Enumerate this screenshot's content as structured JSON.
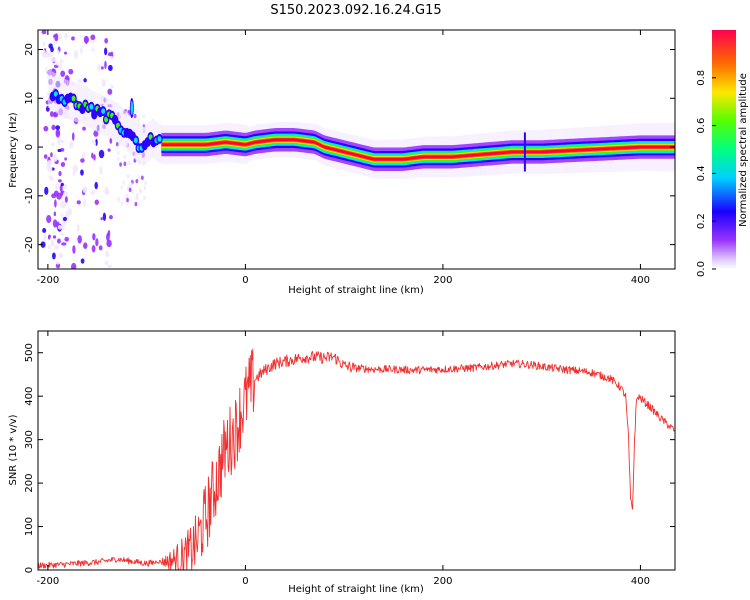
{
  "figure_title": "S150.2023.092.16.24.G15",
  "colorbar": {
    "label": "Normalized spectral amplitude",
    "ticks": [
      "0.0",
      "0.2",
      "0.4",
      "0.6",
      "0.8"
    ]
  },
  "chart_data": [
    {
      "type": "heatmap",
      "title": "",
      "xlabel": "Height of straight line (km)",
      "ylabel": "Frequency (Hz)",
      "xlim": [
        -210,
        435
      ],
      "ylim": [
        -25,
        24
      ],
      "xticks": [
        "-200",
        "0",
        "200",
        "400"
      ],
      "yticks": [
        "-20",
        "-10",
        "0",
        "10",
        "20"
      ],
      "colorscale": [
        "#f2e8ff",
        "#9933ff",
        "#2a00ff",
        "#00e5ff",
        "#33ff00",
        "#ffe000",
        "#ff5a00",
        "#ff0040"
      ],
      "ridge": {
        "x": [
          -200,
          -185,
          -170,
          -160,
          -150,
          -140,
          -130,
          -120,
          -115,
          -110,
          -105,
          -100,
          -95,
          -90,
          -85,
          -80,
          -70,
          -40,
          -20,
          0,
          10,
          30,
          50,
          70,
          80,
          90,
          100,
          110,
          130,
          160,
          180,
          210,
          240,
          270,
          300,
          350,
          400,
          435
        ],
        "y": [
          12,
          10,
          9,
          8,
          7,
          6,
          5,
          3,
          2,
          1,
          0,
          1,
          2,
          1,
          0.5,
          0.5,
          0.5,
          0.5,
          1,
          0.5,
          1,
          1.5,
          1.5,
          1,
          0,
          -0.5,
          -1,
          -1.5,
          -2.5,
          -2.5,
          -2,
          -2,
          -1.5,
          -1,
          -1,
          -0.5,
          0,
          0
        ]
      }
    },
    {
      "type": "line",
      "title": "",
      "xlabel": "Height of straight line (km)",
      "ylabel": "SNR (10 * v/v)",
      "xlim": [
        -210,
        435
      ],
      "ylim": [
        0,
        550
      ],
      "xticks": [
        "-200",
        "0",
        "200",
        "400"
      ],
      "yticks": [
        "0",
        "100",
        "200",
        "300",
        "400",
        "500"
      ],
      "color": "#f23030",
      "series": [
        {
          "x": [
            -210,
            -190,
            -170,
            -150,
            -130,
            -115,
            -100,
            -90,
            -80,
            -70,
            -60,
            -55,
            -50,
            -45,
            -40,
            -35,
            -30,
            -25,
            -20,
            -15,
            -10,
            -5,
            0,
            5,
            10,
            20,
            30,
            40,
            50,
            60,
            70,
            80,
            90,
            95,
            100,
            110,
            130,
            150,
            170,
            200,
            230,
            250,
            270,
            290,
            310,
            330,
            350,
            370,
            380,
            385,
            388,
            390,
            392,
            394,
            396,
            398,
            400,
            410,
            420,
            430,
            435
          ],
          "y": [
            10,
            12,
            15,
            18,
            25,
            20,
            15,
            18,
            20,
            25,
            35,
            45,
            60,
            90,
            120,
            160,
            200,
            240,
            280,
            300,
            320,
            360,
            390,
            420,
            440,
            460,
            475,
            480,
            485,
            490,
            490,
            488,
            490,
            480,
            470,
            465,
            462,
            462,
            460,
            462,
            465,
            470,
            475,
            472,
            465,
            460,
            455,
            440,
            420,
            400,
            300,
            160,
            140,
            300,
            390,
            400,
            395,
            375,
            350,
            330,
            320
          ]
        }
      ]
    }
  ]
}
